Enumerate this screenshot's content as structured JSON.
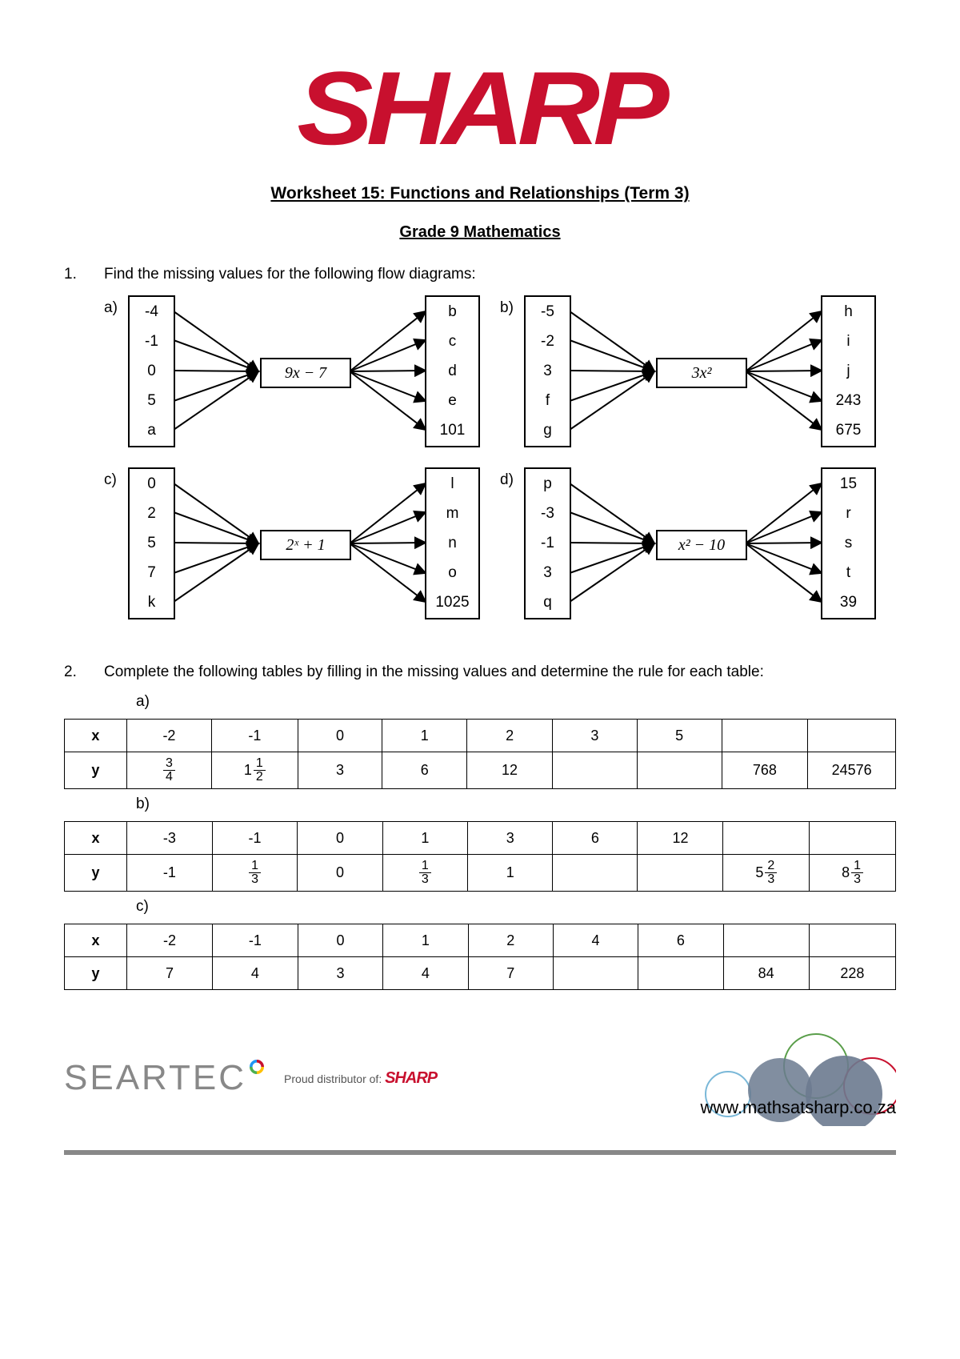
{
  "logo_text": "SHARP",
  "logo_color": "#c8102e",
  "title": "Worksheet 15: Functions and Relationships (Term 3)",
  "subtitle": "Grade 9 Mathematics",
  "q1": {
    "num": "1.",
    "text": "Find the missing values for the following flow diagrams:",
    "diagrams": [
      {
        "label": "a)",
        "inputs": [
          "-4",
          "-1",
          "0",
          "5",
          "a"
        ],
        "rule": "9x − 7",
        "outputs": [
          "b",
          "c",
          "d",
          "e",
          "101"
        ]
      },
      {
        "label": "b)",
        "inputs": [
          "-5",
          "-2",
          "3",
          "f",
          "g"
        ],
        "rule": "3x²",
        "outputs": [
          "h",
          "i",
          "j",
          "243",
          "675"
        ]
      },
      {
        "label": "c)",
        "inputs": [
          "0",
          "2",
          "5",
          "7",
          "k"
        ],
        "rule": "2ˣ + 1",
        "outputs": [
          "l",
          "m",
          "n",
          "o",
          "1025"
        ]
      },
      {
        "label": "d)",
        "inputs": [
          "p",
          "-3",
          "-1",
          "3",
          "q"
        ],
        "rule": "x² − 10",
        "outputs": [
          "15",
          "r",
          "s",
          "t",
          "39"
        ]
      }
    ]
  },
  "q2": {
    "num": "2.",
    "text": "Complete the following tables by filling in the missing values and determine the rule for each table:",
    "tables": [
      {
        "label": "a)",
        "x": [
          "-2",
          "-1",
          "0",
          "1",
          "2",
          "3",
          "5",
          "",
          ""
        ],
        "y": [
          {
            "n": "3",
            "d": "4"
          },
          {
            "w": "1",
            "n": "1",
            "d": "2"
          },
          "3",
          "6",
          "12",
          "",
          "",
          "768",
          "24576"
        ]
      },
      {
        "label": "b)",
        "x": [
          "-3",
          "-1",
          "0",
          "1",
          "3",
          "6",
          "12",
          "",
          ""
        ],
        "y": [
          "-1",
          {
            "n": "1",
            "d": "3"
          },
          "0",
          {
            "n": "1",
            "d": "3"
          },
          "1",
          "",
          "",
          {
            "w": "5",
            "n": "2",
            "d": "3"
          },
          {
            "w": "8",
            "n": "1",
            "d": "3"
          }
        ]
      },
      {
        "label": "c)",
        "x": [
          "-2",
          "-1",
          "0",
          "1",
          "2",
          "4",
          "6",
          "",
          ""
        ],
        "y": [
          "7",
          "4",
          "3",
          "4",
          "7",
          "",
          "",
          "84",
          "228"
        ]
      }
    ]
  },
  "footer": {
    "seartec": "SEARTEC",
    "distributor_pre": "Proud distributor of: ",
    "distributor_brand": "SHARP",
    "url": "www.mathsatsharp.co.za"
  },
  "style": {
    "border_color": "#000",
    "box_stroke": 2,
    "arrow_stroke": 2,
    "font_body": 19,
    "font_title": 21
  }
}
